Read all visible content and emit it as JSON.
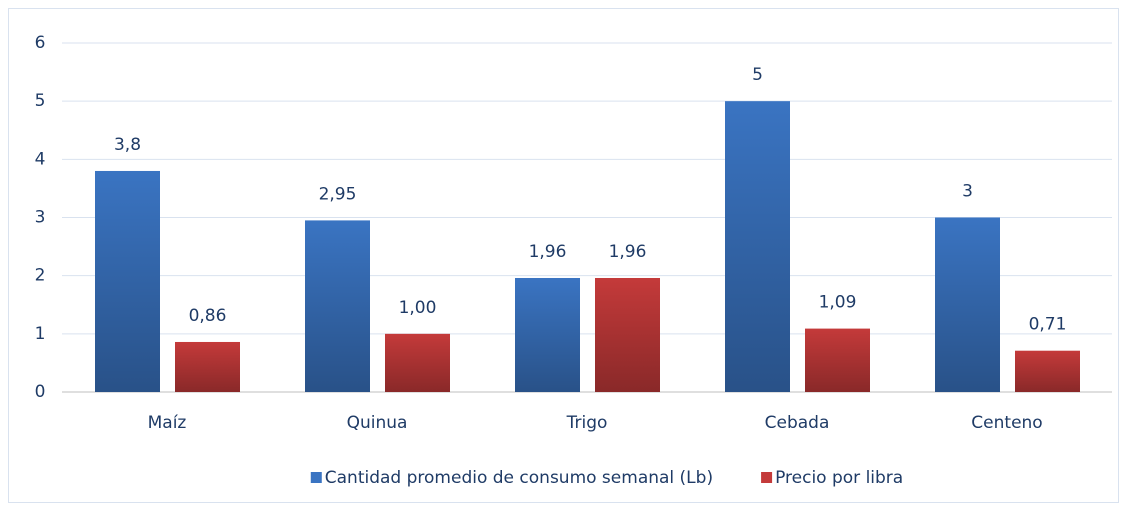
{
  "chart_data": {
    "type": "bar",
    "categories": [
      "Maíz",
      "Quinua",
      "Trigo",
      "Cebada",
      "Centeno"
    ],
    "series": [
      {
        "name": "Cantidad promedio de consumo semanal (Lb)",
        "color": "#3a74c2",
        "values": [
          3.8,
          2.95,
          1.96,
          5,
          3
        ],
        "value_labels": [
          "3,8",
          "2,95",
          "1,96",
          "5",
          "3"
        ]
      },
      {
        "name": "Precio por libra",
        "color": "#c43a3a",
        "values": [
          0.86,
          1.0,
          1.96,
          1.09,
          0.71
        ],
        "value_labels": [
          "0,86",
          "1,00",
          "1,96",
          "1,09",
          "0,71"
        ]
      }
    ],
    "ylim": [
      0,
      6
    ],
    "yticks": [
      0,
      1,
      2,
      3,
      4,
      5,
      6
    ],
    "grid": true,
    "legend": "bottom"
  }
}
